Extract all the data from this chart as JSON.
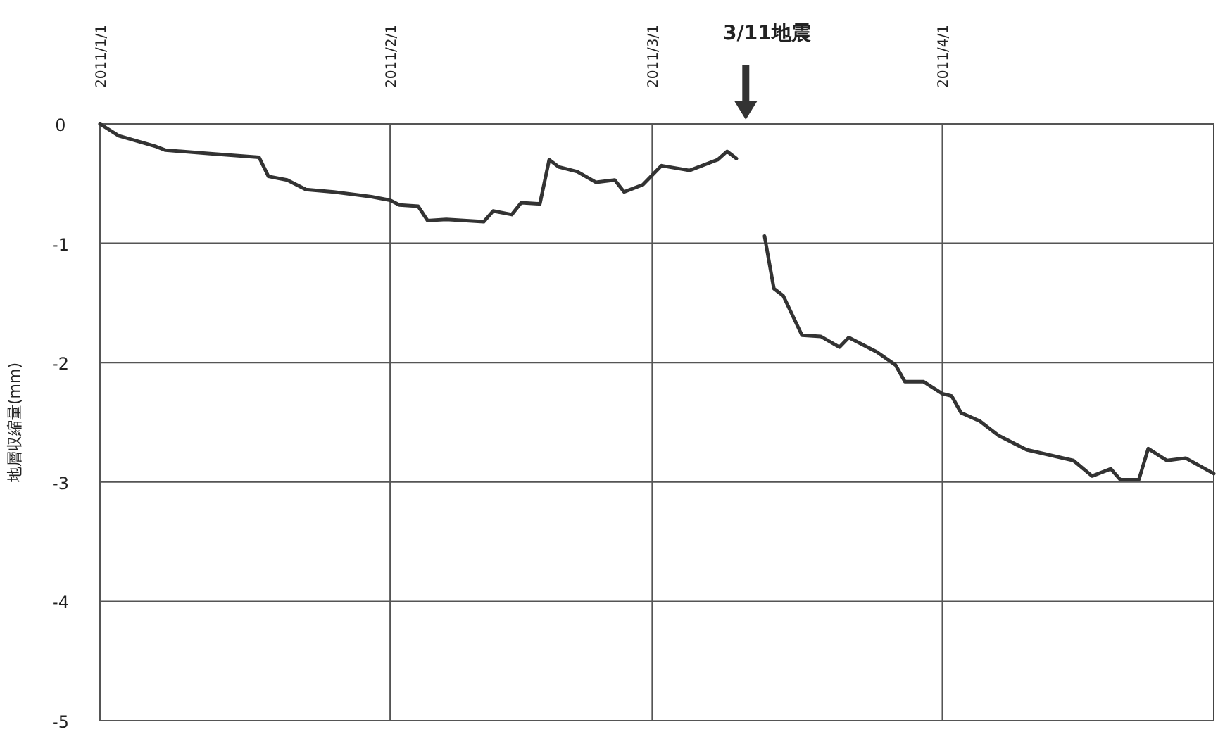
{
  "chart_data": {
    "type": "line",
    "ylabel": "地層収縮量(mm)",
    "xlim": [
      "2011-01-01",
      "2011-04-30"
    ],
    "xticks": [
      {
        "value": "2011-01-01",
        "label": "2011/1/1"
      },
      {
        "value": "2011-02-01",
        "label": "2011/2/1"
      },
      {
        "value": "2011-03-01",
        "label": "2011/3/1"
      },
      {
        "value": "2011-04-01",
        "label": "2011/4/1"
      }
    ],
    "ylim": [
      -5,
      0
    ],
    "yticks": [
      0,
      -1,
      -2,
      -3,
      -4,
      -5
    ],
    "grid": true,
    "marker": "none",
    "line_style": "solid",
    "annotations": [
      "3/11地震"
    ],
    "x": [
      "2011-01-01",
      "2011-01-03",
      "2011-01-07",
      "2011-01-08",
      "2011-01-13",
      "2011-01-18",
      "2011-01-19",
      "2011-01-21",
      "2011-01-23",
      "2011-01-26",
      "2011-01-30",
      "2011-02-01",
      "2011-02-02",
      "2011-02-04",
      "2011-02-05",
      "2011-02-07",
      "2011-02-11",
      "2011-02-12",
      "2011-02-14",
      "2011-02-15",
      "2011-02-17",
      "2011-02-18",
      "2011-02-19",
      "2011-02-21",
      "2011-02-23",
      "2011-02-25",
      "2011-02-26",
      "2011-02-28",
      "2011-03-02",
      "2011-03-05",
      "2011-03-08",
      "2011-03-09",
      "2011-03-10",
      "2011-03-11",
      "2011-03-13",
      "2011-03-14",
      "2011-03-15",
      "2011-03-17",
      "2011-03-19",
      "2011-03-21",
      "2011-03-22",
      "2011-03-25",
      "2011-03-27",
      "2011-03-28",
      "2011-03-30",
      "2011-04-01",
      "2011-04-02",
      "2011-04-03",
      "2011-04-05",
      "2011-04-07",
      "2011-04-10",
      "2011-04-15",
      "2011-04-17",
      "2011-04-19",
      "2011-04-20",
      "2011-04-22",
      "2011-04-23",
      "2011-04-25",
      "2011-04-27",
      "2011-04-30"
    ],
    "series": [
      {
        "color": "#333333",
        "values": [
          0,
          -0.1,
          -0.19,
          -0.22,
          -0.25,
          -0.28,
          -0.44,
          -0.47,
          -0.55,
          -0.57,
          -0.61,
          -0.64,
          -0.68,
          -0.69,
          -0.81,
          -0.8,
          -0.82,
          -0.73,
          -0.76,
          -0.66,
          -0.67,
          -0.3,
          -0.36,
          -0.4,
          -0.49,
          -0.47,
          -0.57,
          -0.51,
          -0.35,
          -0.39,
          -0.3,
          -0.23,
          -0.29,
          null,
          -0.94,
          -1.38,
          -1.44,
          -1.77,
          -1.78,
          -1.87,
          -1.79,
          -1.91,
          -2.02,
          -2.16,
          -2.16,
          -2.26,
          -2.28,
          -2.42,
          -2.49,
          -2.61,
          -2.73,
          -2.82,
          -2.95,
          -2.89,
          -2.98,
          -2.98,
          -2.72,
          -2.82,
          -2.8,
          -2.93
        ]
      }
    ]
  }
}
